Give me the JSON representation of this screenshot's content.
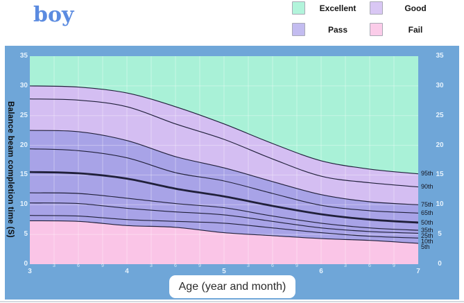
{
  "header": {
    "title": "boy"
  },
  "legend": {
    "items": [
      {
        "label": "Excellent",
        "color": "#b2f4db"
      },
      {
        "label": "Good",
        "color": "#d9c7f4"
      },
      {
        "label": "Pass",
        "color": "#c3bcf0"
      },
      {
        "label": "Fail",
        "color": "#fbcce9"
      }
    ]
  },
  "chart_data": {
    "type": "area",
    "title": "boy",
    "xlabel": "Age (year and month)",
    "ylabel": "Balance beam completion time (S)",
    "xlim": [
      3,
      7
    ],
    "ylim": [
      0,
      35
    ],
    "y_ticks": [
      0,
      5,
      10,
      15,
      20,
      25,
      30,
      35
    ],
    "x_year_ticks": [
      3,
      4,
      5,
      6,
      7
    ],
    "x_month_tick_labels": [
      "3",
      "6",
      "9"
    ],
    "grid": true,
    "legend_position": "top-right",
    "x": [
      3,
      3.5,
      4,
      4.5,
      5,
      5.5,
      6,
      6.5,
      7
    ],
    "series": [
      {
        "name": "95th",
        "emphasis": false,
        "values": [
          30.0,
          29.8,
          28.8,
          26.5,
          23.6,
          20.3,
          17.4,
          16.0,
          15.2
        ]
      },
      {
        "name": "90th",
        "emphasis": false,
        "values": [
          27.8,
          27.6,
          26.5,
          23.6,
          21.0,
          17.7,
          14.8,
          13.7,
          13.0
        ]
      },
      {
        "name": "75th",
        "emphasis": false,
        "values": [
          22.5,
          22.3,
          20.8,
          18.1,
          16.2,
          13.9,
          11.7,
          10.5,
          10.0
        ]
      },
      {
        "name": "65th",
        "emphasis": false,
        "values": [
          19.4,
          19.1,
          17.9,
          15.4,
          14.0,
          11.9,
          9.9,
          9.0,
          8.6
        ]
      },
      {
        "name": "50th",
        "emphasis": true,
        "values": [
          15.5,
          15.3,
          14.4,
          12.7,
          11.4,
          9.8,
          8.4,
          7.5,
          7.0
        ]
      },
      {
        "name": "35th",
        "emphasis": false,
        "values": [
          12.0,
          11.9,
          11.1,
          10.2,
          9.5,
          8.1,
          6.9,
          6.1,
          5.7
        ]
      },
      {
        "name": "25th",
        "emphasis": false,
        "values": [
          10.3,
          10.2,
          9.4,
          8.8,
          8.3,
          7.2,
          6.1,
          5.5,
          5.2
        ]
      },
      {
        "name": "10th",
        "emphasis": false,
        "values": [
          8.2,
          8.1,
          7.5,
          7.2,
          6.9,
          6.1,
          5.3,
          4.7,
          4.4
        ]
      },
      {
        "name": "5th",
        "emphasis": false,
        "values": [
          7.3,
          7.2,
          6.5,
          6.2,
          5.3,
          4.8,
          4.3,
          4.0,
          3.5
        ]
      }
    ],
    "bands": [
      {
        "label": "Excellent",
        "upper": "ylim_top",
        "lower": "95th",
        "color": "#a9f1d7"
      },
      {
        "label": "Good",
        "upper": "95th",
        "lower": "75th",
        "color": "#d4bef2"
      },
      {
        "label": "Pass",
        "upper": "75th",
        "lower": "5th",
        "color": "#a8a3e7"
      },
      {
        "label": "Fail",
        "upper": "5th",
        "lower": "ylim_bottom",
        "color": "#fac5e7"
      }
    ],
    "line_color": "#20203a",
    "grid_color": "rgba(255,255,255,0.35)",
    "panel_color": "#6fa6d8"
  }
}
